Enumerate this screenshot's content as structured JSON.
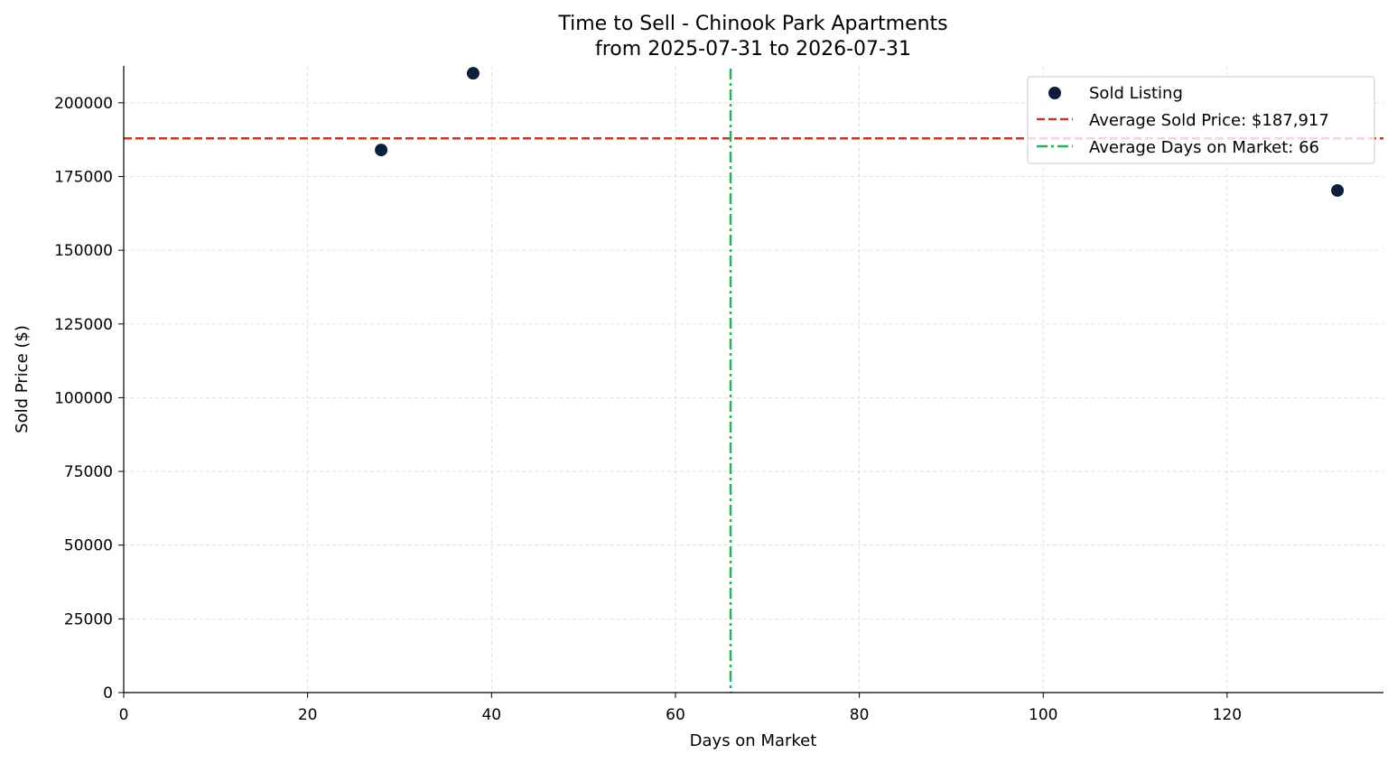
{
  "chart_data": {
    "type": "scatter",
    "title": "Time to Sell - Chinook Park Apartments",
    "subtitle": "from 2025-07-31 to 2026-07-31",
    "xlabel": "Days on Market",
    "ylabel": "Sold Price ($)",
    "xlim": [
      0,
      137
    ],
    "ylim": [
      0,
      212500
    ],
    "x_ticks": [
      0,
      20,
      40,
      60,
      80,
      100,
      120
    ],
    "y_ticks": [
      0,
      25000,
      50000,
      75000,
      100000,
      125000,
      150000,
      175000,
      200000
    ],
    "grid": true,
    "legend_position": "top-right",
    "series": [
      {
        "name": "Sold Listing",
        "color": "#0d1f3c",
        "points": [
          {
            "x": 28,
            "y": 184000
          },
          {
            "x": 38,
            "y": 210000
          },
          {
            "x": 132,
            "y": 170250
          }
        ]
      }
    ],
    "reference_lines": {
      "avg_price": {
        "label": "Average Sold Price: $187,917",
        "value": 187917,
        "color": "#c0392b",
        "style": "dashed"
      },
      "avg_days": {
        "label": "Average Days on Market: 66",
        "value": 66,
        "color": "#27ae60",
        "style": "dash-dot"
      }
    }
  }
}
